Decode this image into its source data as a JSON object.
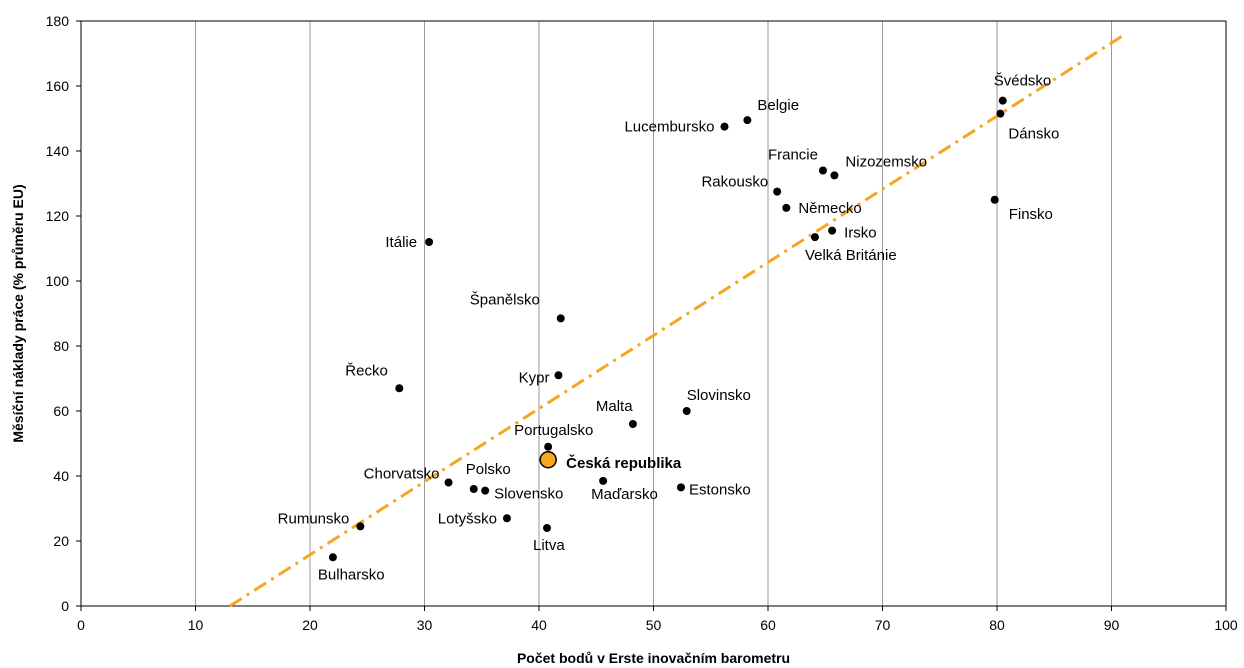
{
  "chart_data": {
    "type": "scatter",
    "xlabel": "Počet bodů v Erste inovačním barometru",
    "ylabel": "Měsíční náklady práce (% průměru EU)",
    "xlim": [
      0,
      100
    ],
    "ylim": [
      0,
      180
    ],
    "x_ticks": [
      "0",
      "10",
      "20",
      "30",
      "40",
      "50",
      "60",
      "70",
      "80",
      "90",
      "100"
    ],
    "y_ticks": [
      "0",
      "20",
      "40",
      "60",
      "80",
      "100",
      "120",
      "140",
      "160",
      "180"
    ],
    "grid": "vertical",
    "trendline": {
      "style": "dash-dot",
      "color": "#f5a623",
      "x_start": 13,
      "x_end": 91,
      "y_start": 0,
      "y_end": 175.5
    },
    "points": [
      {
        "label": "Švédsko",
        "x": 80.5,
        "y": 155.5
      },
      {
        "label": "Dánsko",
        "x": 80.3,
        "y": 151.5
      },
      {
        "label": "Belgie",
        "x": 58.2,
        "y": 149.5
      },
      {
        "label": "Lucembursko",
        "x": 56.2,
        "y": 147.5
      },
      {
        "label": "Francie",
        "x": 64.8,
        "y": 134
      },
      {
        "label": "Nizozemsko",
        "x": 65.8,
        "y": 132.5
      },
      {
        "label": "Rakousko",
        "x": 60.8,
        "y": 127.5
      },
      {
        "label": "Německo",
        "x": 61.6,
        "y": 122.5
      },
      {
        "label": "Finsko",
        "x": 79.8,
        "y": 125
      },
      {
        "label": "Irsko",
        "x": 65.6,
        "y": 115.5
      },
      {
        "label": "Velká Británie",
        "x": 64.1,
        "y": 113.5
      },
      {
        "label": "Itálie",
        "x": 30.4,
        "y": 112
      },
      {
        "label": "Španělsko",
        "x": 41.9,
        "y": 88.5
      },
      {
        "label": "Kypr",
        "x": 41.7,
        "y": 71
      },
      {
        "label": "Řecko",
        "x": 27.8,
        "y": 67
      },
      {
        "label": "Slovinsko",
        "x": 52.9,
        "y": 60
      },
      {
        "label": "Malta",
        "x": 48.2,
        "y": 56
      },
      {
        "label": "Portugalsko",
        "x": 40.8,
        "y": 49
      },
      {
        "label": "Česká republika",
        "x": 40.8,
        "y": 45,
        "highlight": true
      },
      {
        "label": "Chorvatsko",
        "x": 32.1,
        "y": 38
      },
      {
        "label": "Polsko",
        "x": 34.3,
        "y": 36
      },
      {
        "label": "Slovensko",
        "x": 35.3,
        "y": 35.5
      },
      {
        "label": "Maďarsko",
        "x": 45.6,
        "y": 38.5
      },
      {
        "label": "Estonsko",
        "x": 52.4,
        "y": 36.5
      },
      {
        "label": "Lotyšsko",
        "x": 37.2,
        "y": 27
      },
      {
        "label": "Litva",
        "x": 40.7,
        "y": 24
      },
      {
        "label": "Rumunsko",
        "x": 24.4,
        "y": 24.5
      },
      {
        "label": "Bulharsko",
        "x": 22,
        "y": 15
      }
    ],
    "colors": {
      "point": "#000000",
      "highlight_fill": "#f5a623",
      "highlight_stroke": "#000000",
      "trendline": "#f5a623",
      "grid": "#9a9a9a"
    }
  }
}
